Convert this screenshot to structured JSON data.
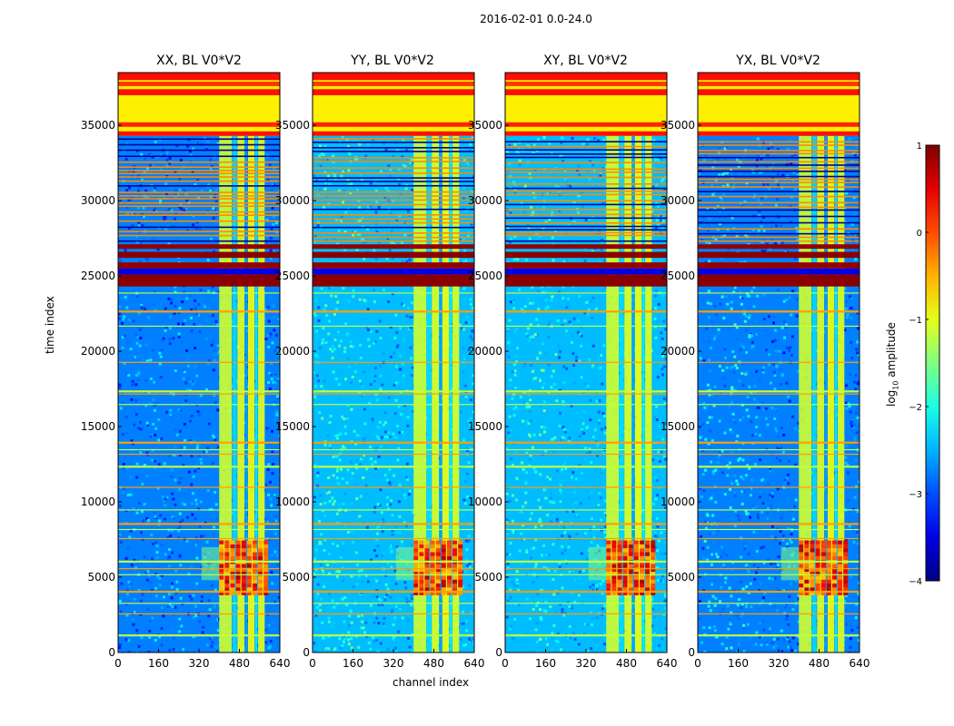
{
  "suptitle": "2016-02-01 0.0-24.0",
  "xlabel": "channel index",
  "ylabel": "time index",
  "colorbar": {
    "label_main": "log",
    "label_sub": "10",
    "label_tail": " amplitude",
    "ticks": [
      "1",
      "0",
      "−1",
      "−2",
      "−3",
      "−4"
    ],
    "range": [
      -4,
      1
    ],
    "colormap": "jet"
  },
  "chart_data": {
    "type": "heatmap",
    "panels": [
      {
        "title": "XX, BL V0*V2"
      },
      {
        "title": "YY, BL V0*V2"
      },
      {
        "title": "XY, BL V0*V2"
      },
      {
        "title": "YX, BL V0*V2"
      }
    ],
    "x_ticks": [
      "0",
      "160",
      "320",
      "480",
      "640"
    ],
    "y_ticks": [
      "0",
      "5000",
      "10000",
      "15000",
      "20000",
      "25000",
      "30000",
      "35000"
    ],
    "xlim": [
      0,
      640
    ],
    "ylim": [
      0,
      38500
    ],
    "zlabel": "log10 amplitude",
    "zlim": [
      -4,
      1
    ],
    "features": {
      "saturated_block_time": [
        34300,
        38500
      ],
      "saturated_block_value": -0.8,
      "dense_flag_time": [
        27300,
        34200
      ],
      "red_band_time": [
        24300,
        27000
      ],
      "rfi_channel_range": [
        400,
        580
      ],
      "rfi_burst_time": [
        3800,
        7300
      ]
    }
  }
}
